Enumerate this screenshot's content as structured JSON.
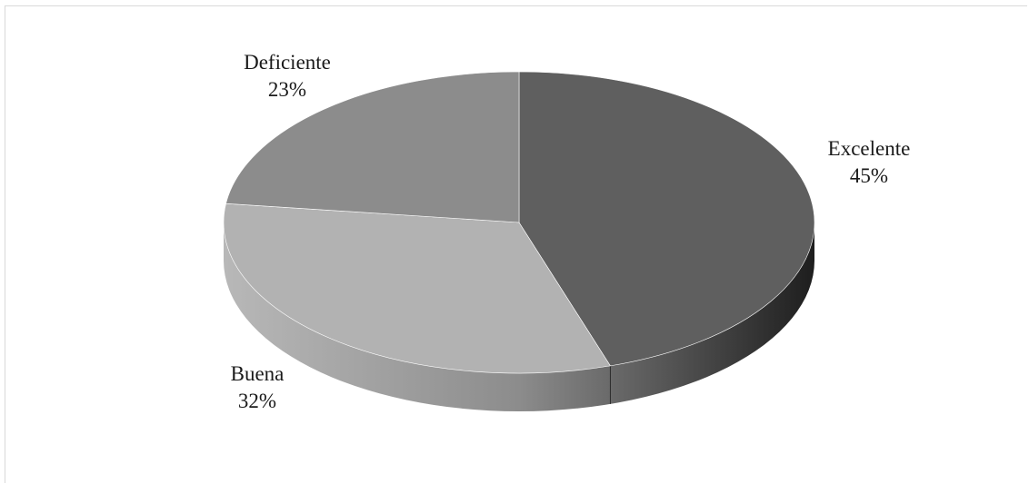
{
  "chart_data": {
    "type": "pie",
    "style": "3d",
    "title": "",
    "slices": [
      {
        "label": "Excelente",
        "value": 45,
        "display": "45%",
        "color": "#5f5f5f"
      },
      {
        "label": "Buena",
        "value": 32,
        "display": "32%",
        "color": "#b2b2b2"
      },
      {
        "label": "Deficiente",
        "value": 23,
        "display": "23%",
        "color": "#8c8c8c"
      }
    ],
    "legend": "none",
    "data_labels": "outside, category name and percentage"
  }
}
